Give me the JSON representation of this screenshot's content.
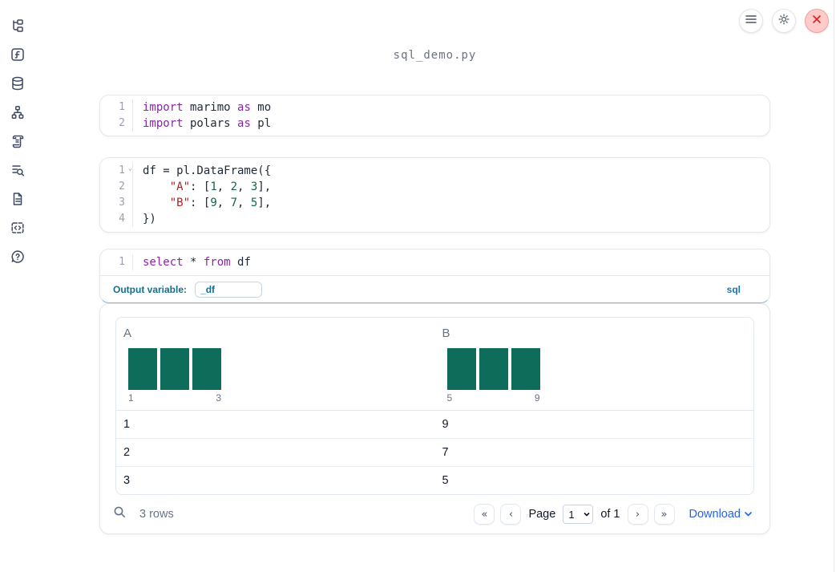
{
  "app": {
    "title": "sql_demo.py"
  },
  "colors": {
    "keyword": "#8a25a8",
    "string": "#aa2222",
    "number": "#116644",
    "code_text": "#1f2937",
    "histogram_bar": "#0e6c5a",
    "output_variable_accent": "#11708d",
    "language_label_blue": "#1d74a6",
    "download_link": "#2563eb",
    "close_button_red": "#dc2626"
  },
  "sidebar": {
    "items": [
      {
        "icon": "file-tree-icon"
      },
      {
        "icon": "function-icon"
      },
      {
        "icon": "database-icon"
      },
      {
        "icon": "dependency-graph-icon"
      },
      {
        "icon": "scroll-logs-icon"
      },
      {
        "icon": "list-search-icon"
      },
      {
        "icon": "document-icon"
      },
      {
        "icon": "code-block-icon"
      },
      {
        "icon": "help-icon"
      }
    ]
  },
  "topbar": {
    "buttons": [
      {
        "icon": "hamburger-menu-icon"
      },
      {
        "icon": "gear-icon"
      },
      {
        "icon": "close-x-icon"
      }
    ]
  },
  "cells": [
    {
      "name": "imports-cell",
      "lines": [
        {
          "num": "1",
          "tokens": [
            {
              "c": "kw",
              "t": "import"
            },
            {
              "c": "pl",
              "t": " marimo "
            },
            {
              "c": "kw",
              "t": "as"
            },
            {
              "c": "pl",
              "t": " mo"
            }
          ]
        },
        {
          "num": "2",
          "tokens": [
            {
              "c": "kw",
              "t": "import"
            },
            {
              "c": "pl",
              "t": " polars "
            },
            {
              "c": "kw",
              "t": "as"
            },
            {
              "c": "pl",
              "t": " pl"
            }
          ]
        }
      ]
    },
    {
      "name": "dataframe-cell",
      "lines": [
        {
          "num": "1",
          "fold": true,
          "tokens": [
            {
              "c": "pl",
              "t": "df = pl.DataFrame({"
            }
          ]
        },
        {
          "num": "2",
          "tokens": [
            {
              "c": "pl",
              "t": "    "
            },
            {
              "c": "str",
              "t": "\"A\""
            },
            {
              "c": "pl",
              "t": ": ["
            },
            {
              "c": "num",
              "t": "1"
            },
            {
              "c": "pl",
              "t": ", "
            },
            {
              "c": "num",
              "t": "2"
            },
            {
              "c": "pl",
              "t": ", "
            },
            {
              "c": "num",
              "t": "3"
            },
            {
              "c": "pl",
              "t": "],"
            }
          ]
        },
        {
          "num": "3",
          "tokens": [
            {
              "c": "pl",
              "t": "    "
            },
            {
              "c": "str",
              "t": "\"B\""
            },
            {
              "c": "pl",
              "t": ": ["
            },
            {
              "c": "num",
              "t": "9"
            },
            {
              "c": "pl",
              "t": ", "
            },
            {
              "c": "num",
              "t": "7"
            },
            {
              "c": "pl",
              "t": ", "
            },
            {
              "c": "num",
              "t": "5"
            },
            {
              "c": "pl",
              "t": "],"
            }
          ]
        },
        {
          "num": "4",
          "tokens": [
            {
              "c": "pl",
              "t": "})"
            }
          ]
        }
      ]
    },
    {
      "name": "sql-cell",
      "lines": [
        {
          "num": "1",
          "tokens": [
            {
              "c": "kw",
              "t": "select"
            },
            {
              "c": "pl",
              "t": " * "
            },
            {
              "c": "kw",
              "t": "from"
            },
            {
              "c": "pl",
              "t": " df"
            }
          ]
        }
      ]
    }
  ],
  "sql_cell": {
    "output_variable_label": "Output variable:",
    "output_variable_value": "_df",
    "language_label": "sql"
  },
  "output_table": {
    "columns": [
      {
        "name": "A",
        "histogram": {
          "bars": [
            1,
            1,
            1
          ],
          "min_label": "1",
          "max_label": "3"
        }
      },
      {
        "name": "B",
        "histogram": {
          "bars": [
            1,
            1,
            1
          ],
          "min_label": "5",
          "max_label": "9"
        }
      }
    ],
    "rows": [
      [
        "1",
        "9"
      ],
      [
        "2",
        "7"
      ],
      [
        "3",
        "5"
      ]
    ],
    "row_count": "3 rows",
    "pagination": {
      "first": "«",
      "prev": "‹",
      "next": "›",
      "last": "»",
      "page_label": "Page",
      "current_page": "1",
      "total_label": "of 1"
    },
    "download_label": "Download"
  }
}
